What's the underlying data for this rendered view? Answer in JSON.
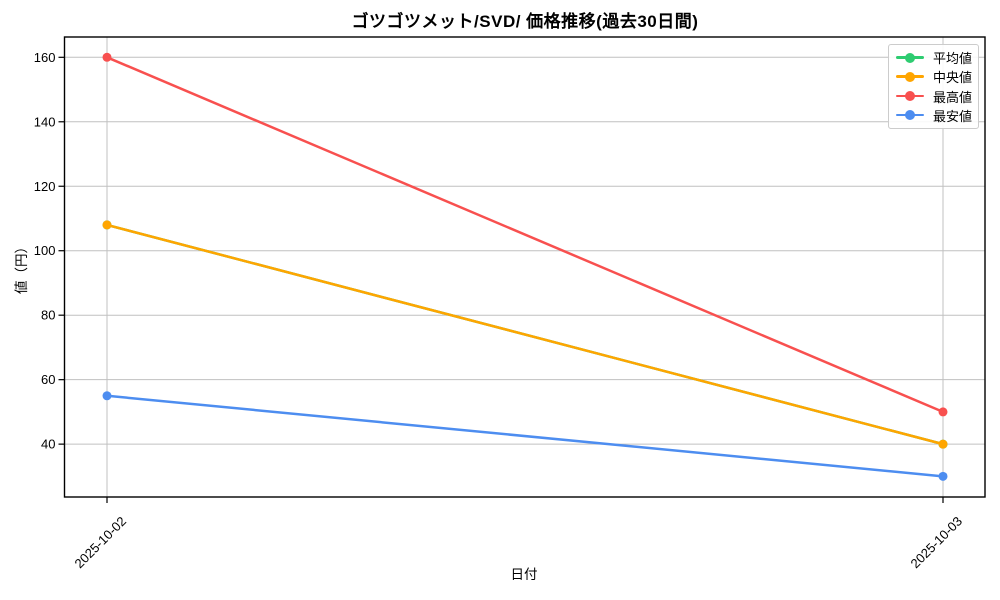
{
  "chart_data": {
    "type": "line",
    "title": "ゴツゴツメット/SVD/ 価格推移(過去30日間)",
    "xlabel": "日付",
    "ylabel": "値（円）",
    "categories": [
      "2025-10-02",
      "2025-10-03"
    ],
    "series": [
      {
        "key": "average",
        "name": "平均値",
        "color": "#2ecc71",
        "values": [
          108,
          40
        ]
      },
      {
        "key": "median",
        "name": "中央値",
        "color": "#ffa500",
        "values": [
          108,
          40
        ]
      },
      {
        "key": "highest",
        "name": "最高値",
        "color": "#f8504f",
        "values": [
          160,
          50
        ]
      },
      {
        "key": "lowest",
        "name": "最安値",
        "color": "#4d8df0",
        "values": [
          55,
          30
        ]
      }
    ],
    "ylim": [
      23.6,
      166.3
    ],
    "yticks": [
      40,
      60,
      80,
      100,
      120,
      140,
      160
    ],
    "grid": true,
    "legend_position": "upper right",
    "colors": {
      "grid": "#c0c0c0",
      "axis": "#000000",
      "background": "#ffffff"
    }
  }
}
